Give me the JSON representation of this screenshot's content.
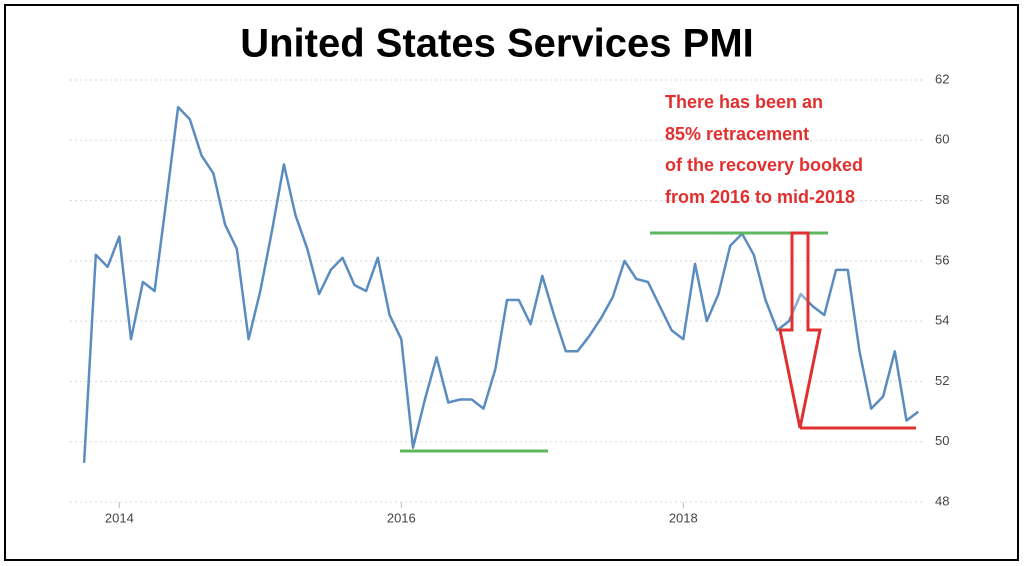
{
  "chart_data": {
    "type": "line",
    "title": "United States Services PMI",
    "annotation": [
      "There has been an",
      "85% retracement",
      "of the recovery booked",
      "from 2016 to mid-2018"
    ],
    "x": [
      2013.75,
      2013.833,
      2013.917,
      2014.0,
      2014.083,
      2014.167,
      2014.25,
      2014.333,
      2014.417,
      2014.5,
      2014.583,
      2014.667,
      2014.75,
      2014.833,
      2014.917,
      2015.0,
      2015.083,
      2015.167,
      2015.25,
      2015.333,
      2015.417,
      2015.5,
      2015.583,
      2015.667,
      2015.75,
      2015.833,
      2015.917,
      2016.0,
      2016.083,
      2016.167,
      2016.25,
      2016.333,
      2016.417,
      2016.5,
      2016.583,
      2016.667,
      2016.75,
      2016.833,
      2016.917,
      2017.0,
      2017.083,
      2017.167,
      2017.25,
      2017.333,
      2017.417,
      2017.5,
      2017.583,
      2017.667,
      2017.75,
      2017.833,
      2017.917,
      2018.0,
      2018.083,
      2018.167,
      2018.25,
      2018.333,
      2018.417,
      2018.5,
      2018.583,
      2018.667,
      2018.75,
      2018.833,
      2018.917,
      2019.0,
      2019.083,
      2019.167,
      2019.25,
      2019.333,
      2019.417,
      2019.5,
      2019.583,
      2019.667
    ],
    "series": [
      {
        "name": "Services PMI",
        "color": "#5b8cc0",
        "values": [
          49.3,
          56.2,
          55.8,
          56.8,
          53.4,
          55.3,
          55.0,
          58.0,
          61.1,
          60.7,
          59.5,
          58.9,
          57.2,
          56.4,
          53.4,
          55.0,
          57.0,
          59.2,
          57.5,
          56.4,
          54.9,
          55.7,
          56.1,
          55.2,
          55.0,
          56.1,
          54.2,
          53.4,
          49.8,
          51.4,
          52.8,
          51.3,
          51.4,
          51.4,
          51.1,
          52.4,
          54.7,
          54.7,
          53.9,
          55.5,
          54.2,
          53.0,
          53.0,
          53.5,
          54.1,
          54.8,
          56.0,
          55.4,
          55.3,
          54.5,
          53.7,
          53.4,
          55.9,
          54.0,
          54.9,
          56.5,
          56.9,
          56.2,
          54.7,
          53.7,
          54.0,
          54.9,
          54.5,
          54.2,
          55.7,
          55.7,
          53.0,
          51.1,
          51.5,
          53.0,
          50.7,
          51.0
        ]
      }
    ],
    "xlim": [
      2013.65,
      2019.75
    ],
    "xticks": [
      2014,
      2016,
      2018
    ],
    "ylim": [
      48,
      62
    ],
    "yticks": [
      48,
      50,
      52,
      54,
      56,
      58,
      60,
      62
    ],
    "grid": true
  }
}
